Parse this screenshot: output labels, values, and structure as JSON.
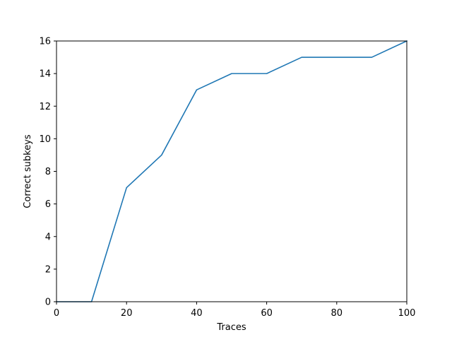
{
  "chart_data": {
    "type": "line",
    "title": "",
    "xlabel": "Traces",
    "ylabel": "Correct subkeys",
    "xlim": [
      0,
      100
    ],
    "ylim": [
      0,
      16
    ],
    "xticks": [
      0,
      20,
      40,
      60,
      80,
      100
    ],
    "yticks": [
      0,
      2,
      4,
      6,
      8,
      10,
      12,
      14,
      16
    ],
    "grid": false,
    "legend": "none",
    "series": [
      {
        "color": "#1f77b4",
        "x": [
          0,
          10,
          20,
          30,
          40,
          50,
          60,
          70,
          80,
          90,
          100
        ],
        "y": [
          0,
          0,
          7,
          9,
          13,
          14,
          14,
          15,
          15,
          15,
          16
        ]
      }
    ]
  }
}
